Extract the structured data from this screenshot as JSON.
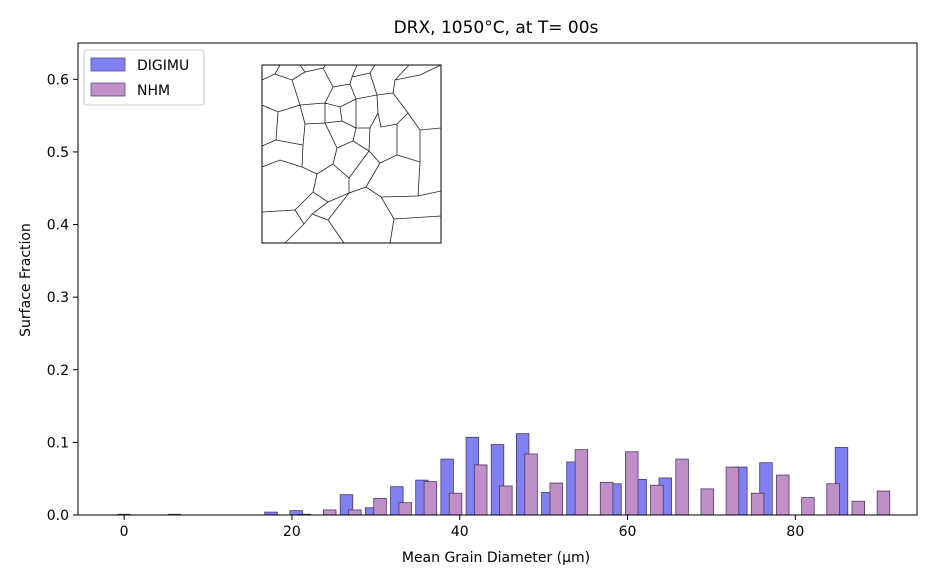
{
  "chart_data": {
    "type": "bar",
    "title": "DRX, 1050°C, at T= 00s",
    "xlabel": "Mean Grain Diameter (µm)",
    "ylabel": "Surface Fraction",
    "xlim": [
      -5.5,
      94.5
    ],
    "ylim": [
      0,
      0.65
    ],
    "xticks": [
      0,
      20,
      40,
      60,
      80
    ],
    "yticks": [
      0.0,
      0.1,
      0.2,
      0.3,
      0.4,
      0.5,
      0.6
    ],
    "bar_width": 1.5,
    "legend_position": "top-left",
    "grid": false,
    "series": [
      {
        "name": "DIGIMU",
        "color": "#8080f0",
        "x": [
          -0.75,
          16.75,
          19.75,
          25.75,
          28.75,
          31.75,
          34.75,
          37.75,
          40.75,
          43.75,
          46.75,
          49.75,
          52.75,
          57.75,
          60.75,
          63.75,
          72.75,
          75.75,
          84.75
        ],
        "values": [
          0.001,
          0.004,
          0.006,
          0.028,
          0.01,
          0.039,
          0.048,
          0.077,
          0.107,
          0.097,
          0.112,
          0.031,
          0.073,
          0.043,
          0.049,
          0.051,
          0.066,
          0.072,
          0.093
        ]
      },
      {
        "name": "NHM",
        "color": "#c18fc8",
        "x": [
          5.25,
          20.75,
          23.75,
          26.75,
          29.75,
          32.75,
          35.75,
          38.75,
          41.75,
          44.75,
          47.75,
          50.75,
          53.75,
          56.75,
          59.75,
          62.75,
          65.75,
          68.75,
          71.75,
          74.75,
          77.75,
          80.75,
          83.75,
          86.75,
          89.75
        ],
        "values": [
          0.001,
          0.001,
          0.007,
          0.007,
          0.023,
          0.017,
          0.046,
          0.03,
          0.069,
          0.04,
          0.084,
          0.044,
          0.09,
          0.045,
          0.087,
          0.041,
          0.077,
          0.036,
          0.066,
          0.03,
          0.055,
          0.024,
          0.043,
          0.019,
          0.033
        ]
      }
    ]
  }
}
